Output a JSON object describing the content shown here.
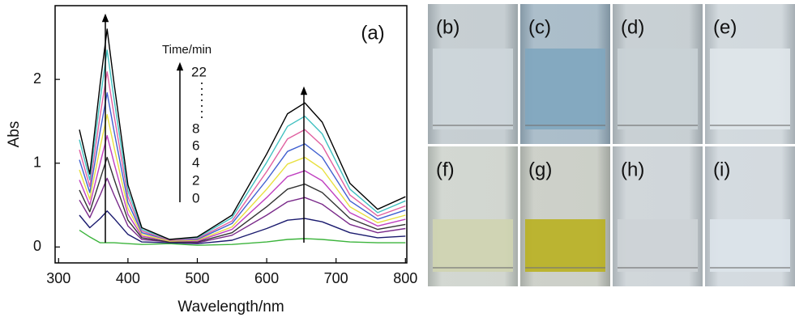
{
  "chart_data": {
    "type": "line",
    "x_label": "Wavelength/nm",
    "y_label": "Abs",
    "annotations": [
      "(a)",
      "Time/min",
      "22",
      "8",
      "6",
      "4",
      "2",
      "0"
    ],
    "x": [
      330,
      345,
      360,
      370,
      380,
      400,
      420,
      460,
      500,
      550,
      600,
      630,
      655,
      680,
      720,
      760,
      800
    ],
    "series": [
      {
        "color": "#3cb43c",
        "values": [
          0.2,
          0.12,
          0.05,
          0.05,
          0.05,
          0.04,
          0.03,
          0.04,
          0.02,
          0.03,
          0.06,
          0.09,
          0.1,
          0.09,
          0.06,
          0.05,
          0.05
        ]
      },
      {
        "color": "#1a1a6e",
        "values": [
          0.38,
          0.23,
          0.34,
          0.43,
          0.34,
          0.15,
          0.06,
          0.05,
          0.04,
          0.08,
          0.22,
          0.32,
          0.34,
          0.3,
          0.17,
          0.11,
          0.13
        ]
      },
      {
        "color": "#7a2a8a",
        "values": [
          0.56,
          0.35,
          0.62,
          0.82,
          0.62,
          0.25,
          0.09,
          0.06,
          0.05,
          0.14,
          0.38,
          0.54,
          0.59,
          0.51,
          0.27,
          0.17,
          0.22
        ]
      },
      {
        "color": "#333333",
        "values": [
          0.68,
          0.42,
          0.81,
          1.07,
          0.81,
          0.32,
          0.11,
          0.06,
          0.06,
          0.17,
          0.48,
          0.69,
          0.75,
          0.65,
          0.34,
          0.21,
          0.27
        ]
      },
      {
        "color": "#c040c0",
        "values": [
          0.8,
          0.5,
          1.0,
          1.33,
          1.0,
          0.39,
          0.13,
          0.07,
          0.07,
          0.21,
          0.59,
          0.84,
          0.91,
          0.79,
          0.41,
          0.25,
          0.33
        ]
      },
      {
        "color": "#e8e040",
        "values": [
          0.92,
          0.57,
          1.19,
          1.58,
          1.19,
          0.46,
          0.15,
          0.07,
          0.08,
          0.24,
          0.69,
          0.99,
          1.07,
          0.93,
          0.48,
          0.29,
          0.38
        ]
      },
      {
        "color": "#4060d0",
        "values": [
          1.04,
          0.65,
          1.38,
          1.84,
          1.38,
          0.53,
          0.17,
          0.08,
          0.09,
          0.28,
          0.8,
          1.14,
          1.23,
          1.07,
          0.55,
          0.33,
          0.44
        ]
      },
      {
        "color": "#e060a0",
        "values": [
          1.16,
          0.72,
          1.57,
          2.09,
          1.57,
          0.6,
          0.19,
          0.08,
          0.1,
          0.31,
          0.9,
          1.29,
          1.4,
          1.21,
          0.62,
          0.37,
          0.49
        ]
      },
      {
        "color": "#40c0c0",
        "values": [
          1.28,
          0.8,
          1.76,
          2.35,
          1.76,
          0.67,
          0.21,
          0.09,
          0.11,
          0.35,
          1.01,
          1.44,
          1.56,
          1.35,
          0.69,
          0.41,
          0.55
        ]
      },
      {
        "color": "#000000",
        "values": [
          1.4,
          0.87,
          1.95,
          2.6,
          1.95,
          0.74,
          0.23,
          0.09,
          0.12,
          0.38,
          1.11,
          1.59,
          1.72,
          1.49,
          0.76,
          0.45,
          0.6
        ]
      }
    ],
    "xlim": [
      295,
      802
    ],
    "xticks": [
      300,
      400,
      500,
      600,
      700,
      800
    ],
    "ylim": [
      -0.19,
      2.88
    ],
    "yticks": [
      0,
      1,
      2
    ]
  },
  "photo_panels": [
    "(b)",
    "(c)",
    "(d)",
    "(e)",
    "(f)",
    "(g)",
    "(h)",
    "(i)"
  ]
}
